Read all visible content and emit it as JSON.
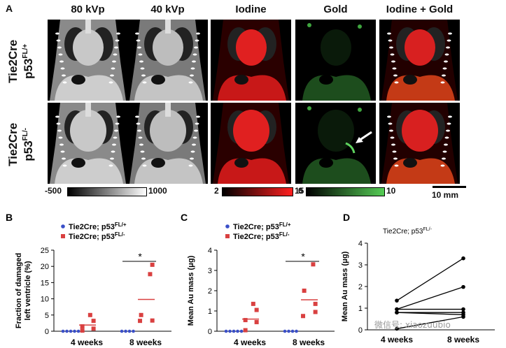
{
  "panel_a": {
    "letter": "A",
    "columns": [
      "80 kVp",
      "40 kVp",
      "Iodine",
      "Gold",
      "Iodine + Gold"
    ],
    "rows": [
      {
        "line1": "Tie2Cre",
        "line2": "p53",
        "sup": "FL/+"
      },
      {
        "line1": "Tie2Cre",
        "line2": "p53",
        "sup": "FL/-"
      }
    ],
    "colorbars": [
      {
        "name": "grayscale",
        "min": "-500",
        "max": "1000",
        "start_color": "#000000",
        "end_color": "#ffffff"
      },
      {
        "name": "iodine",
        "min": "2",
        "max": "15",
        "start_color": "#000000",
        "end_color": "#ff2020"
      },
      {
        "name": "gold",
        "min": "0",
        "max": "10",
        "start_color": "#000000",
        "end_color": "#55cc55"
      }
    ],
    "scalebar": "10 mm"
  },
  "chart_data": [
    {
      "panel": "B",
      "type": "scatter",
      "ylabel_line1": "Fraction of damaged",
      "ylabel_line2": "left ventricle (%)",
      "ylim": [
        0,
        25
      ],
      "yticks": [
        "0",
        "5",
        "10",
        "15",
        "20",
        "25"
      ],
      "categories": [
        "4 weeks",
        "8 weeks"
      ],
      "legend": [
        {
          "label": "Tie2Cre; p53",
          "sup": "FL/+",
          "color": "#3a4fc8",
          "shape": "circle"
        },
        {
          "label": "Tie2Cre; p53",
          "sup": "FL/-",
          "color": "#d94040",
          "shape": "square"
        }
      ],
      "series": [
        {
          "name": "FL/+",
          "points": [
            [
              0,
              0
            ],
            [
              0,
              0
            ],
            [
              0,
              0
            ],
            [
              0,
              0
            ],
            [
              0,
              0
            ],
            [
              1,
              0
            ],
            [
              1,
              0
            ],
            [
              1,
              0
            ],
            [
              1,
              0
            ]
          ],
          "mean": [
            0,
            0
          ]
        },
        {
          "name": "FL/-",
          "points": [
            [
              0,
              0.2
            ],
            [
              0,
              0.8
            ],
            [
              0,
              1.5
            ],
            [
              0,
              3.2
            ],
            [
              0,
              5.0
            ],
            [
              1,
              3.2
            ],
            [
              1,
              3.3
            ],
            [
              1,
              5.0
            ],
            [
              1,
              17.6
            ],
            [
              1,
              20.5
            ]
          ],
          "mean": [
            1.9,
            9.8
          ]
        }
      ],
      "significance": "*"
    },
    {
      "panel": "C",
      "type": "scatter",
      "ylabel": "Mean Au mass (μg)",
      "ylim": [
        0,
        4
      ],
      "yticks": [
        "0",
        "1",
        "2",
        "3",
        "4"
      ],
      "categories": [
        "4 weeks",
        "8 weeks"
      ],
      "legend": [
        {
          "label": "Tie2Cre; p53",
          "sup": "FL/+",
          "color": "#3a4fc8",
          "shape": "circle"
        },
        {
          "label": "Tie2Cre; p53",
          "sup": "FL/-",
          "color": "#d94040",
          "shape": "square"
        }
      ],
      "series": [
        {
          "name": "FL/+",
          "points": [
            [
              0,
              0
            ],
            [
              0,
              0
            ],
            [
              0,
              0
            ],
            [
              0,
              0
            ],
            [
              0,
              0
            ],
            [
              1,
              0
            ],
            [
              1,
              0
            ],
            [
              1,
              0
            ],
            [
              1,
              0
            ]
          ],
          "mean": [
            0,
            0
          ]
        },
        {
          "name": "FL/-",
          "points": [
            [
              0,
              0.05
            ],
            [
              0,
              0.45
            ],
            [
              0,
              0.55
            ],
            [
              0,
              1.05
            ],
            [
              0,
              1.35
            ],
            [
              1,
              0.75
            ],
            [
              1,
              0.95
            ],
            [
              1,
              2.0
            ],
            [
              1,
              3.3
            ],
            [
              1,
              1.35
            ]
          ],
          "mean": [
            0.6,
            1.55
          ]
        },
        {
          "name": "",
          "points": []
        }
      ],
      "significance": "*"
    },
    {
      "panel": "D",
      "type": "line",
      "title": "Tie2Cre; p53",
      "title_sup": "FL/-",
      "ylabel": "Mean Au mass (μg)",
      "ylim": [
        0,
        4
      ],
      "yticks": [
        "0",
        "1",
        "2",
        "3",
        "4"
      ],
      "categories": [
        "4 weeks",
        "8 weeks"
      ],
      "pairs": [
        [
          1.35,
          3.3
        ],
        [
          0.95,
          1.98
        ],
        [
          0.95,
          0.95
        ],
        [
          0.8,
          0.8
        ],
        [
          0.8,
          0.7
        ],
        [
          0.05,
          0.6
        ]
      ]
    }
  ],
  "watermark": "微信号: xiaozuubio"
}
